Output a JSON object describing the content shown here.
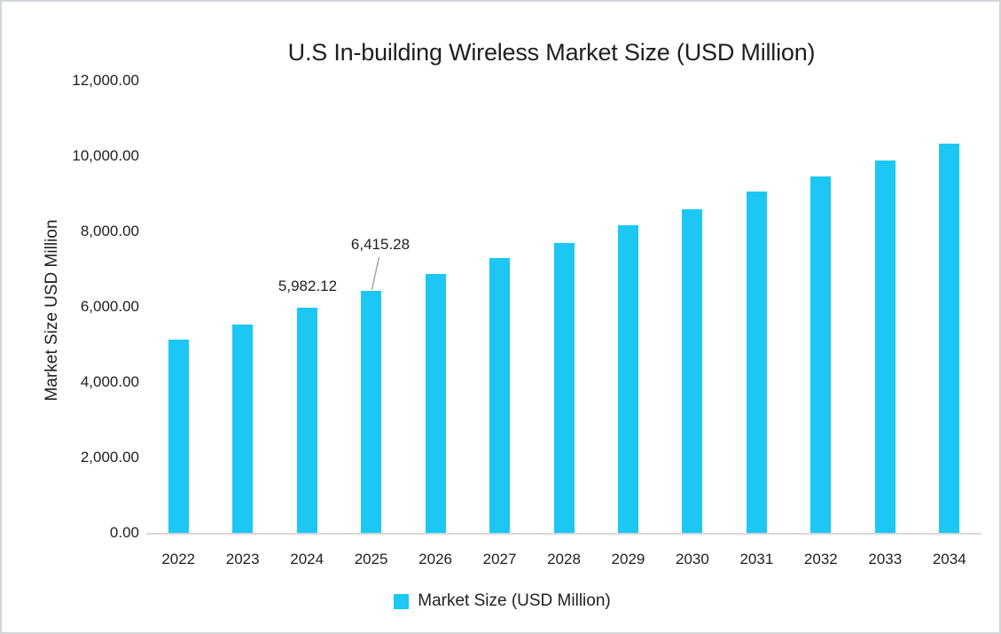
{
  "chart_data": {
    "type": "bar",
    "title": "U.S In-building Wireless Market Size (USD Million)",
    "xlabel": "",
    "ylabel": "Market Size USD Million",
    "ylim": [
      0,
      12000
    ],
    "ytick_interval": 2000,
    "ytick_labels": [
      "12,000.00",
      "10,000.00",
      "8,000.00",
      "6,000.00",
      "4,000.00",
      "2,000.00",
      "0.00"
    ],
    "categories": [
      "2022",
      "2023",
      "2024",
      "2025",
      "2026",
      "2027",
      "2028",
      "2029",
      "2030",
      "2031",
      "2032",
      "2033",
      "2034"
    ],
    "values": [
      5140,
      5540,
      5982.12,
      6415.28,
      6860,
      7290,
      7700,
      8170,
      8600,
      9050,
      9470,
      9890,
      10320
    ],
    "series": [
      {
        "name": "Market Size (USD Million)",
        "values": [
          5140,
          5540,
          5982.12,
          6415.28,
          6860,
          7290,
          7700,
          8170,
          8600,
          9050,
          9470,
          9890,
          10320
        ]
      }
    ],
    "point_labels": [
      {
        "category": "2024",
        "text": "5,982.12",
        "has_leader_line": false
      },
      {
        "category": "2025",
        "text": "6,415.28",
        "has_leader_line": true
      }
    ],
    "grid": false,
    "legend_position": "bottom",
    "colors": {
      "bar": "#1cc7f4",
      "axis_line": "#d9d9d9",
      "leader_line": "#a6a6a6",
      "text": "#1f1f1f"
    }
  },
  "legend": {
    "label": "Market Size (USD Million)"
  }
}
